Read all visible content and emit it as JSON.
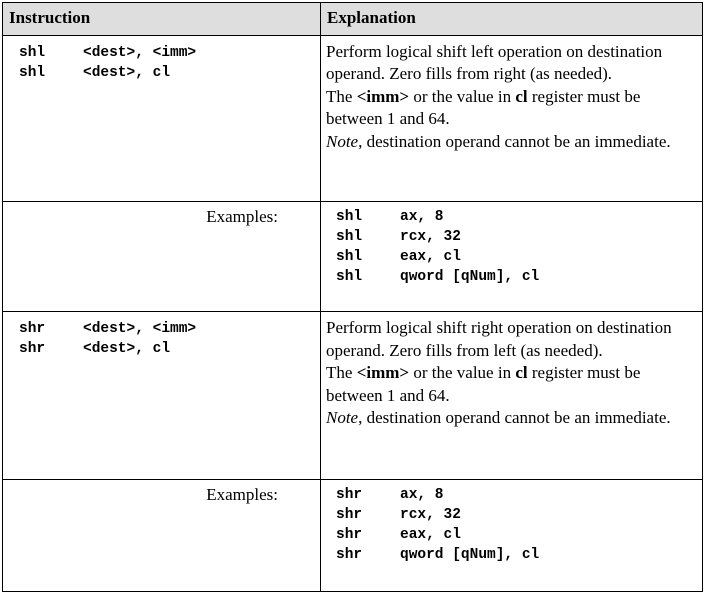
{
  "header": {
    "col1": "Instruction",
    "col2": "Explanation"
  },
  "sections": [
    {
      "instructions": [
        {
          "mnemonic": "shl",
          "operands": "<dest>, <imm>"
        },
        {
          "mnemonic": "shl",
          "operands": "<dest>, cl"
        }
      ],
      "explanation": {
        "line1": "Perform logical shift left operation on destination operand.  Zero fills from right (as needed).",
        "line2_pre": "The ",
        "line2_imm": "<imm>",
        "line2_mid": " or the value in ",
        "line2_cl": "cl",
        "line2_post": " register must be between 1 and 64.",
        "note_word": "Note",
        "note_rest": ", destination operand cannot be an immediate."
      },
      "examples_label": "Examples:",
      "examples": [
        {
          "mnemonic": "shl",
          "operands": "ax, 8"
        },
        {
          "mnemonic": "shl",
          "operands": "rcx, 32"
        },
        {
          "mnemonic": "shl",
          "operands": "eax, cl"
        },
        {
          "mnemonic": "shl",
          "operands": "qword [qNum], cl"
        }
      ]
    },
    {
      "instructions": [
        {
          "mnemonic": "shr",
          "operands": "<dest>, <imm>"
        },
        {
          "mnemonic": "shr",
          "operands": "<dest>, cl"
        }
      ],
      "explanation": {
        "line1": "Perform logical shift right operation on destination operand.  Zero fills from left (as needed).",
        "line2_pre": "The ",
        "line2_imm": "<imm>",
        "line2_mid": " or the value in ",
        "line2_cl": "cl",
        "line2_post": " register must be between 1 and 64.",
        "note_word": "Note",
        "note_rest": ", destination operand cannot be an immediate."
      },
      "examples_label": "Examples:",
      "examples": [
        {
          "mnemonic": "shr",
          "operands": "ax, 8"
        },
        {
          "mnemonic": "shr",
          "operands": "rcx, 32"
        },
        {
          "mnemonic": "shr",
          "operands": "eax, cl"
        },
        {
          "mnemonic": "shr",
          "operands": "qword [qNum], cl"
        }
      ]
    }
  ]
}
